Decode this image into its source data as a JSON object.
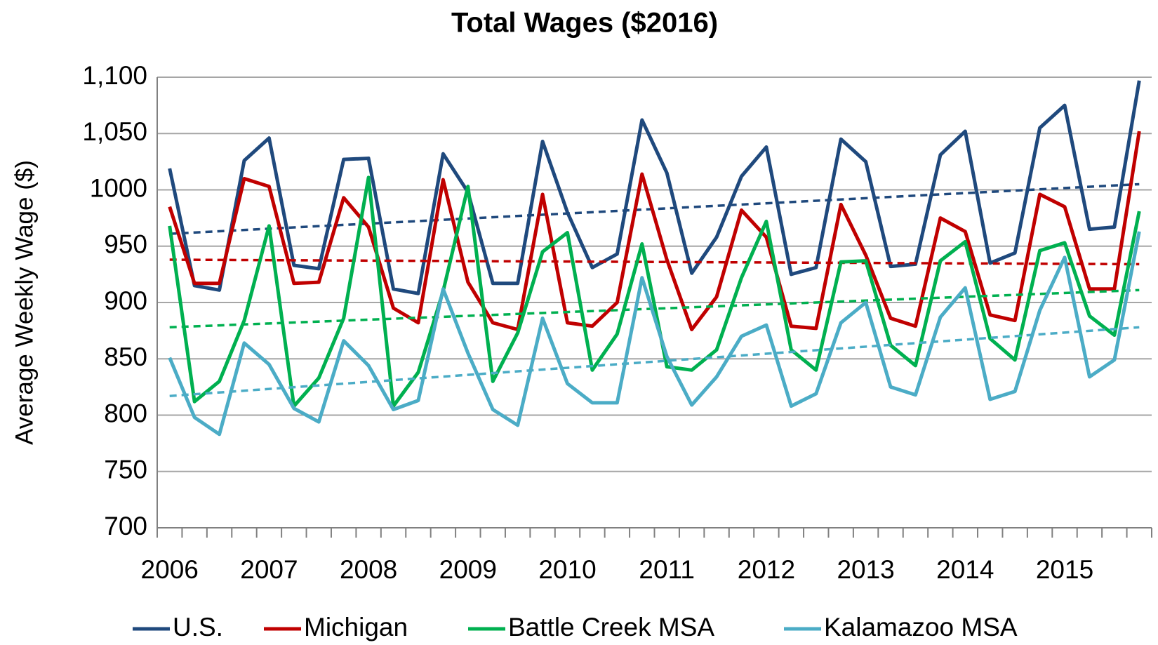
{
  "chart_data": {
    "type": "line",
    "title": "Total Wages ($2016)",
    "y_label": "Average Weekly Wage ($)",
    "categories": [
      "2006",
      null,
      null,
      null,
      "2007",
      null,
      null,
      null,
      "2008",
      null,
      null,
      null,
      "2009",
      null,
      null,
      null,
      "2010",
      null,
      null,
      null,
      "2011",
      null,
      null,
      null,
      "2012",
      null,
      null,
      null,
      "2013",
      null,
      null,
      null,
      "2014",
      null,
      null,
      null,
      "2015",
      null,
      null,
      null
    ],
    "series": [
      {
        "name": "U.S.",
        "color": "#1f497d",
        "values": [
          1019,
          915,
          911,
          1026,
          1046,
          933,
          930,
          1027,
          1028,
          912,
          908,
          1032,
          998,
          917,
          917,
          1043,
          980,
          931,
          943,
          1062,
          1015,
          926,
          958,
          1012,
          1038,
          925,
          931,
          1045,
          1025,
          932,
          934,
          1031,
          1052,
          935,
          944,
          1055,
          1075,
          965,
          967,
          1097
        ],
        "trend": [
          961,
          1005
        ]
      },
      {
        "name": "Michigan",
        "color": "#c00000",
        "values": [
          985,
          917,
          917,
          1010,
          1003,
          917,
          918,
          993,
          967,
          895,
          882,
          1009,
          918,
          882,
          876,
          996,
          882,
          879,
          900,
          1014,
          938,
          876,
          905,
          982,
          958,
          879,
          877,
          987,
          942,
          886,
          879,
          975,
          963,
          889,
          884,
          996,
          985,
          912,
          912,
          1052
        ],
        "trend": [
          938,
          934
        ]
      },
      {
        "name": "Battle Creek MSA",
        "color": "#00b050",
        "values": [
          968,
          812,
          830,
          884,
          968,
          808,
          833,
          886,
          1011,
          808,
          838,
          910,
          1003,
          830,
          873,
          945,
          962,
          840,
          872,
          952,
          843,
          840,
          858,
          922,
          972,
          858,
          840,
          936,
          937,
          862,
          844,
          937,
          954,
          868,
          849,
          946,
          953,
          888,
          871,
          981
        ],
        "trend": [
          878,
          911
        ]
      },
      {
        "name": "Kalamazoo MSA",
        "color": "#4bacc6",
        "values": [
          851,
          798,
          783,
          864,
          845,
          806,
          794,
          866,
          844,
          805,
          813,
          912,
          855,
          805,
          791,
          886,
          828,
          811,
          811,
          922,
          852,
          809,
          834,
          870,
          880,
          808,
          819,
          882,
          900,
          825,
          818,
          887,
          913,
          814,
          821,
          893,
          940,
          834,
          849,
          963
        ],
        "trend": [
          817,
          878
        ]
      }
    ],
    "ylim": [
      700,
      1100
    ],
    "yticks": [
      700,
      750,
      800,
      850,
      900,
      950,
      1000,
      {
        "value": 1050,
        "label": "1,050"
      },
      {
        "value": 1100,
        "label": "1,100"
      }
    ],
    "grid": true,
    "legend": "bottom"
  }
}
